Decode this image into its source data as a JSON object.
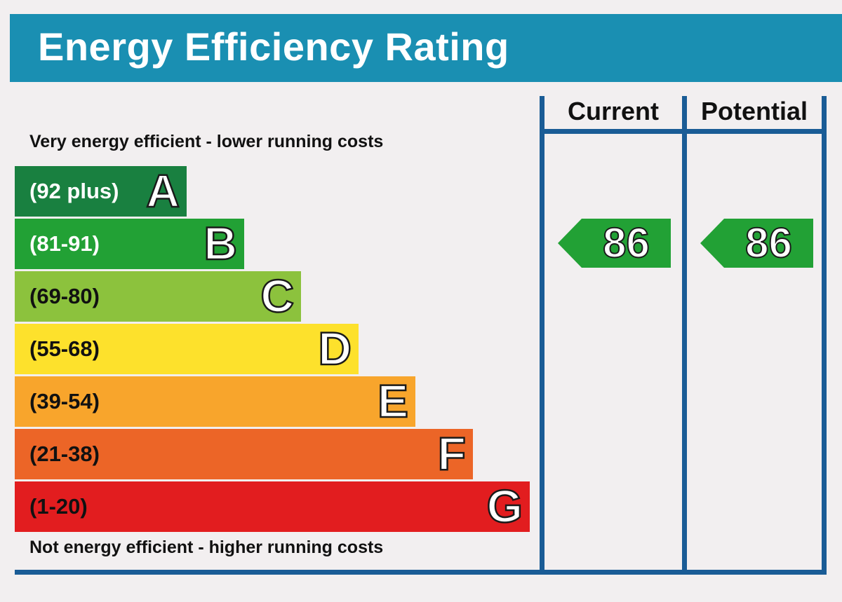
{
  "title": "Energy Efficiency Rating",
  "top_caption": "Very energy efficient - lower running costs",
  "bottom_caption": "Not energy efficient - higher running costs",
  "columns": {
    "current": "Current",
    "potential": "Potential"
  },
  "colors": {
    "header": "#1a8fb2",
    "frame": "#1a5c96",
    "A": "#198040",
    "B": "#22a135",
    "C": "#8cc23d",
    "D": "#fde12c",
    "E": "#f8a52c",
    "F": "#ec6527",
    "G": "#e21d1f"
  },
  "chart_data": {
    "type": "bar",
    "title": "Energy Efficiency Rating",
    "categories": [
      "A",
      "B",
      "C",
      "D",
      "E",
      "F",
      "G"
    ],
    "bands": [
      {
        "letter": "A",
        "range": "(92 plus)",
        "min": 92,
        "max": null,
        "color": "#198040",
        "text_color": "#ffffff"
      },
      {
        "letter": "B",
        "range": "(81-91)",
        "min": 81,
        "max": 91,
        "color": "#22a135",
        "text_color": "#ffffff"
      },
      {
        "letter": "C",
        "range": "(69-80)",
        "min": 69,
        "max": 80,
        "color": "#8cc23d",
        "text_color": "#111111"
      },
      {
        "letter": "D",
        "range": "(55-68)",
        "min": 55,
        "max": 68,
        "color": "#fde12c",
        "text_color": "#111111"
      },
      {
        "letter": "E",
        "range": "(39-54)",
        "min": 39,
        "max": 54,
        "color": "#f8a52c",
        "text_color": "#111111"
      },
      {
        "letter": "F",
        "range": "(21-38)",
        "min": 21,
        "max": 38,
        "color": "#ec6527",
        "text_color": "#111111"
      },
      {
        "letter": "G",
        "range": "(1-20)",
        "min": 1,
        "max": 20,
        "color": "#e21d1f",
        "text_color": "#111111"
      }
    ],
    "current": {
      "label": "Current",
      "value": 86,
      "band": "B"
    },
    "potential": {
      "label": "Potential",
      "value": 86,
      "band": "B"
    }
  }
}
